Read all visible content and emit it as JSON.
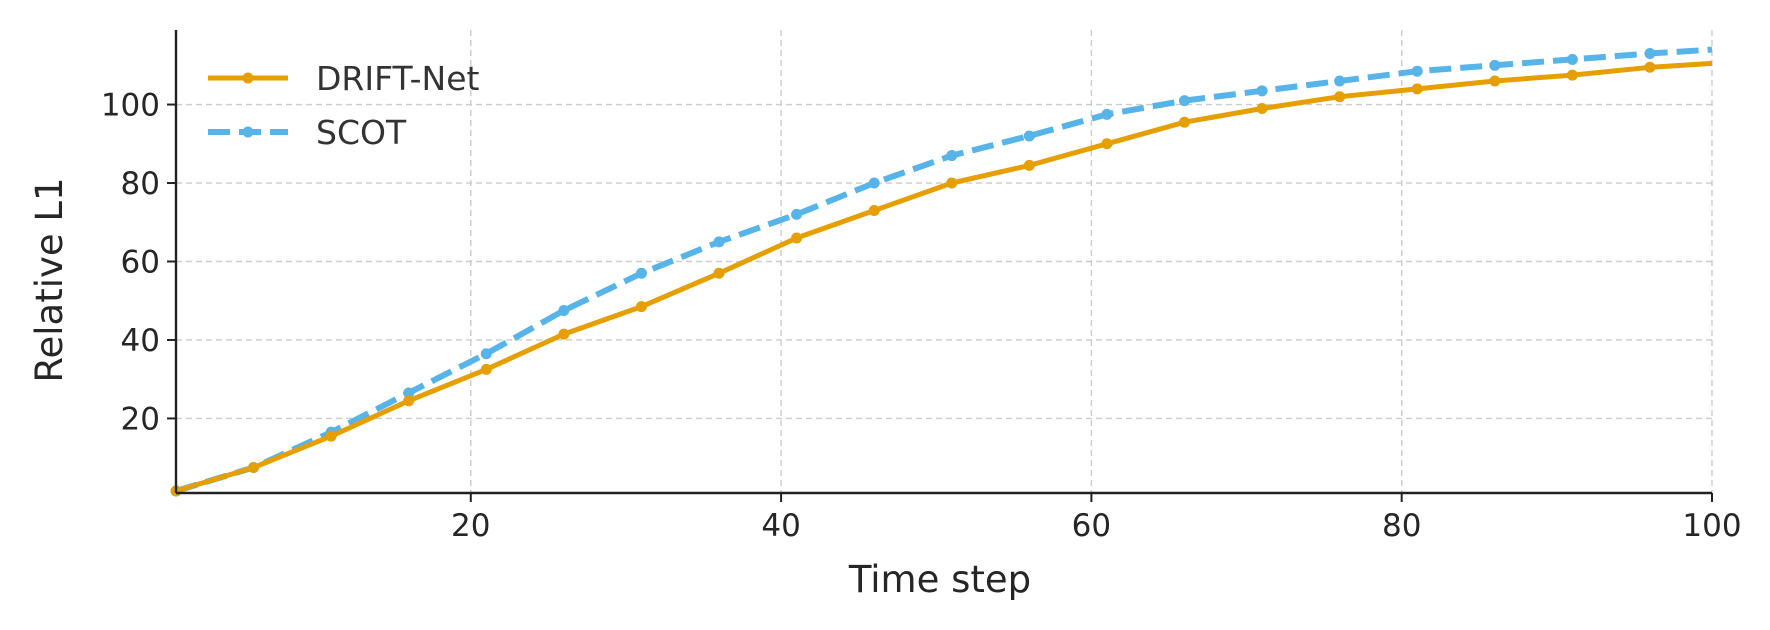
{
  "chart_data": {
    "type": "line",
    "title": "",
    "xlabel": "Time step",
    "ylabel": "Relative L1",
    "xlim": [
      1,
      100
    ],
    "ylim": [
      1,
      119
    ],
    "xticks": [
      20,
      40,
      60,
      80,
      100
    ],
    "yticks": [
      20,
      40,
      60,
      80,
      100
    ],
    "grid": true,
    "legend_position": "top-left",
    "series": [
      {
        "name": "DRIFT-Net",
        "color": "#E69F00",
        "line_style": "solid",
        "marker_x": [
          1,
          6,
          11,
          16,
          21,
          26,
          31,
          36,
          41,
          46,
          51,
          56,
          61,
          66,
          71,
          76,
          81,
          86,
          91,
          96
        ],
        "x": [
          1,
          6,
          11,
          16,
          21,
          26,
          31,
          36,
          41,
          46,
          51,
          56,
          61,
          66,
          71,
          76,
          81,
          86,
          91,
          96,
          100
        ],
        "y": [
          1.5,
          7.5,
          15.5,
          24.5,
          32.5,
          41.5,
          48.5,
          57,
          66,
          73,
          80,
          84.5,
          90,
          95.5,
          99,
          102,
          104,
          106,
          107.5,
          109.5,
          110.5
        ]
      },
      {
        "name": "SCOT",
        "color": "#56B4E9",
        "line_style": "dashed",
        "marker_x": [
          1,
          6,
          11,
          16,
          21,
          26,
          31,
          36,
          41,
          46,
          51,
          56,
          61,
          66,
          71,
          76,
          81,
          86,
          91,
          96
        ],
        "x": [
          1,
          6,
          11,
          16,
          21,
          26,
          31,
          36,
          41,
          46,
          51,
          56,
          61,
          66,
          71,
          76,
          81,
          86,
          91,
          96,
          100
        ],
        "y": [
          1.5,
          7.5,
          16.5,
          26.5,
          36.5,
          47.5,
          57,
          65,
          72,
          80,
          87,
          92,
          97.5,
          101,
          103.5,
          106,
          108.5,
          110,
          111.5,
          113,
          114
        ]
      }
    ]
  }
}
